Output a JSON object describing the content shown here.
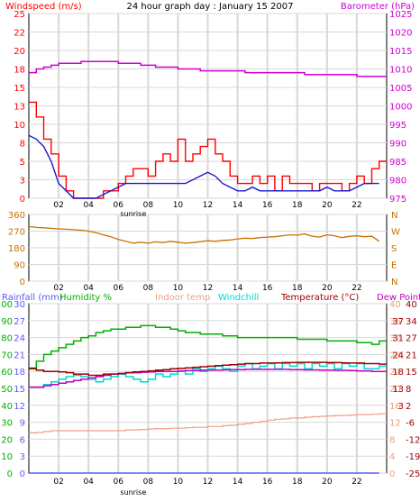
{
  "title": "24 hour graph day : January 15 2007",
  "colors": {
    "wind_speed": "#ff0000",
    "wind_gust": "#1a1ad0",
    "barometer": "#d000d0",
    "direction": "#c87000",
    "rainfall": "#5a5aff",
    "humidity": "#00b000",
    "indoor_temp": "#f0a080",
    "windchill": "#00d8d8",
    "temperature": "#a00000",
    "dew_point": "#c000c0",
    "grid": "#d8d8d8",
    "frame": "#000000"
  },
  "x_ticks": [
    "02",
    "04",
    "06",
    "08",
    "10",
    "12",
    "14",
    "16",
    "18",
    "20",
    "22"
  ],
  "sunrise_label": "sunrise",
  "chart_data": [
    {
      "type": "line",
      "panel": "wind-barometer",
      "left_axis_label": "Windspeed (m/s)",
      "right_axis_label": "Barometer (hPa)",
      "left_ticks": [
        "25",
        "22",
        "20",
        "18",
        "15",
        "13",
        "10",
        "8",
        "5",
        "3",
        "0"
      ],
      "right_ticks": [
        "1025",
        "1020",
        "1015",
        "1010",
        "1005",
        "1000",
        "995",
        "990",
        "985",
        "980",
        "975"
      ],
      "ylim_left": [
        0,
        25
      ],
      "ylim_right": [
        975,
        1025
      ],
      "x": [
        0,
        0.5,
        1,
        1.5,
        2,
        2.5,
        3,
        3.5,
        4,
        4.5,
        5,
        5.5,
        6,
        6.5,
        7,
        7.5,
        8,
        8.5,
        9,
        9.5,
        10,
        10.5,
        11,
        11.5,
        12,
        12.5,
        13,
        13.5,
        14,
        14.5,
        15,
        15.5,
        16,
        16.5,
        17,
        17.5,
        18,
        18.5,
        19,
        19.5,
        20,
        20.5,
        21,
        21.5,
        22,
        22.5,
        23,
        23.5
      ],
      "series": [
        {
          "key": "wind_speed",
          "values": [
            13,
            11,
            8,
            6,
            3,
            1,
            0,
            0,
            0,
            0,
            1,
            1,
            2,
            3,
            4,
            4,
            3,
            5,
            6,
            5,
            8,
            5,
            6,
            7,
            8,
            6,
            5,
            3,
            2,
            2,
            3,
            2,
            3,
            1,
            3,
            2,
            2,
            2,
            1,
            2,
            2,
            2,
            1,
            2,
            3,
            2,
            4,
            5
          ]
        },
        {
          "key": "wind_gust",
          "values": [
            8.5,
            8,
            7,
            5,
            2,
            1,
            0,
            0,
            0,
            0,
            0.5,
            1,
            1.5,
            2,
            2,
            2,
            2,
            2,
            2,
            2,
            2,
            2,
            2.5,
            3,
            3.5,
            3,
            2,
            1.5,
            1,
            1,
            1.5,
            1,
            1,
            1,
            1,
            1,
            1,
            1,
            1,
            1,
            1.5,
            1,
            1,
            1,
            1.5,
            2,
            2,
            2
          ]
        },
        {
          "key": "barometer",
          "values": [
            1009,
            1010,
            1010.5,
            1011,
            1011.5,
            1011.5,
            1011.5,
            1012,
            1012,
            1012,
            1012,
            1012,
            1011.5,
            1011.5,
            1011.5,
            1011,
            1011,
            1010.5,
            1010.5,
            1010.5,
            1010,
            1010,
            1010,
            1009.5,
            1009.5,
            1009.5,
            1009.5,
            1009.5,
            1009.5,
            1009,
            1009,
            1009,
            1009,
            1009,
            1009,
            1009,
            1009,
            1008.5,
            1008.5,
            1008.5,
            1008.5,
            1008.5,
            1008.5,
            1008.5,
            1008,
            1008,
            1008,
            1008
          ]
        }
      ]
    },
    {
      "type": "line",
      "panel": "wind-direction",
      "left_ticks": [
        "360",
        "270",
        "180",
        "90",
        "0"
      ],
      "right_ticks": [
        "N",
        "W",
        "S",
        "E",
        "N"
      ],
      "ylim_left": [
        0,
        360
      ],
      "x": [
        0,
        0.5,
        1,
        1.5,
        2,
        2.5,
        3,
        3.5,
        4,
        4.5,
        5,
        5.5,
        6,
        6.5,
        7,
        7.5,
        8,
        8.5,
        9,
        9.5,
        10,
        10.5,
        11,
        11.5,
        12,
        12.5,
        13,
        13.5,
        14,
        14.5,
        15,
        15.5,
        16,
        16.5,
        17,
        17.5,
        18,
        18.5,
        19,
        19.5,
        20,
        20.5,
        21,
        21.5,
        22,
        22.5,
        23,
        23.5
      ],
      "series": [
        {
          "key": "direction",
          "values": [
            295,
            290,
            288,
            285,
            282,
            280,
            278,
            275,
            270,
            262,
            250,
            240,
            225,
            215,
            205,
            210,
            205,
            212,
            208,
            215,
            210,
            205,
            208,
            213,
            218,
            215,
            220,
            222,
            228,
            232,
            230,
            235,
            238,
            240,
            245,
            250,
            248,
            255,
            243,
            238,
            250,
            245,
            235,
            242,
            245,
            240,
            243,
            215
          ]
        }
      ]
    },
    {
      "type": "line",
      "panel": "temp-humidity",
      "left_axis_label": "Rainfall (mm)",
      "humidity_label": "Humidity %",
      "indoor_label": "Indoor temp",
      "windchill_label": "Windchill",
      "temperature_label": "Temperature (°C)",
      "dewpoint_label": "Dew Point",
      "rain_ticks": [
        "30",
        "27",
        "24",
        "21",
        "18",
        "15",
        "12",
        "9",
        "6",
        "3",
        "0"
      ],
      "humidity_ticks": [
        "100",
        "90",
        "80",
        "70",
        "60",
        "50",
        "40",
        "30",
        "20",
        "10",
        "0"
      ],
      "indoor_ticks": [
        "40",
        "36",
        "32",
        "28",
        "24",
        "20",
        "16",
        "12",
        "8",
        "4",
        "0"
      ],
      "temp_ticks": [
        "40",
        "34",
        "27",
        "21",
        "15",
        "8",
        "2",
        "-6",
        "-12",
        "-19",
        "-25"
      ],
      "temp_ticks_inner": [
        "37",
        "31",
        "24",
        "18",
        "13",
        "3"
      ],
      "ylim_humidity": [
        0,
        100
      ],
      "ylim_temp": [
        -25,
        40
      ],
      "ylim_indoor": [
        0,
        40
      ],
      "ylim_rain": [
        0,
        30
      ],
      "x": [
        0,
        0.5,
        1,
        1.5,
        2,
        2.5,
        3,
        3.5,
        4,
        4.5,
        5,
        5.5,
        6,
        6.5,
        7,
        7.5,
        8,
        8.5,
        9,
        9.5,
        10,
        10.5,
        11,
        11.5,
        12,
        12.5,
        13,
        13.5,
        14,
        14.5,
        15,
        15.5,
        16,
        16.5,
        17,
        17.5,
        18,
        18.5,
        19,
        19.5,
        20,
        20.5,
        21,
        21.5,
        22,
        22.5,
        23,
        23.5
      ],
      "series": [
        {
          "key": "humidity",
          "values": [
            62,
            66,
            70,
            72,
            74,
            76,
            78,
            80,
            81,
            83,
            84,
            85,
            85,
            86,
            86,
            87,
            87,
            86,
            86,
            85,
            84,
            83,
            83,
            82,
            82,
            82,
            81,
            81,
            80,
            80,
            80,
            80,
            80,
            80,
            80,
            80,
            79,
            79,
            79,
            79,
            78,
            78,
            78,
            78,
            77,
            77,
            76,
            78
          ]
        },
        {
          "key": "temperature",
          "values": [
            15,
            14.5,
            14,
            14,
            13.8,
            13.5,
            13,
            13,
            12.5,
            12.5,
            13,
            13,
            13.2,
            13.5,
            13.8,
            14,
            14.2,
            14.5,
            14.7,
            15,
            15.2,
            15.4,
            15.6,
            15.8,
            16,
            16.2,
            16.4,
            16.6,
            16.8,
            17,
            17,
            17.2,
            17.2,
            17.3,
            17.4,
            17.4,
            17.5,
            17.5,
            17.5,
            17.5,
            17.4,
            17.4,
            17.3,
            17.2,
            17.2,
            17,
            17,
            16.8
          ]
        },
        {
          "key": "dew_point",
          "values": [
            8,
            8,
            8.5,
            9,
            9.5,
            10,
            10.5,
            11,
            11.5,
            12,
            12.5,
            13,
            13.2,
            13.5,
            13.5,
            13.7,
            13.8,
            14,
            14,
            14,
            14.2,
            14.3,
            14.3,
            14.5,
            14.5,
            14.5,
            14.6,
            14.7,
            14.7,
            14.8,
            14.8,
            14.8,
            14.8,
            14.8,
            14.8,
            14.7,
            14.7,
            14.6,
            14.6,
            14.5,
            14.5,
            14.4,
            14.4,
            14.3,
            14.2,
            14.2,
            14,
            14
          ]
        },
        {
          "key": "windchill",
          "values": [
            8,
            8,
            9,
            10,
            11,
            12,
            12.5,
            12,
            11,
            10,
            11,
            12,
            13,
            12,
            11,
            10,
            11,
            13,
            12,
            13,
            14,
            13,
            15,
            14,
            15,
            16,
            15,
            14,
            16,
            17,
            15,
            16,
            17,
            15,
            17,
            16,
            17,
            15,
            17,
            16,
            17,
            15,
            17,
            16,
            17,
            15,
            15,
            16
          ]
        },
        {
          "key": "indoor_temp",
          "values": [
            9.5,
            9.6,
            9.8,
            10,
            10,
            10,
            10,
            10,
            10,
            10,
            10,
            10,
            10,
            10.2,
            10.2,
            10.3,
            10.4,
            10.5,
            10.5,
            10.6,
            10.6,
            10.7,
            10.8,
            10.8,
            11,
            11,
            11.2,
            11.3,
            11.5,
            11.7,
            12,
            12.2,
            12.5,
            12.7,
            12.8,
            13,
            13,
            13.2,
            13.3,
            13.4,
            13.5,
            13.6,
            13.6,
            13.7,
            13.8,
            13.8,
            13.9,
            14
          ]
        },
        {
          "key": "rainfall",
          "values": [
            0,
            0,
            0,
            0,
            0,
            0,
            0,
            0,
            0,
            0,
            0,
            0,
            0,
            0,
            0,
            0,
            0,
            0,
            0,
            0,
            0,
            0,
            0,
            0,
            0,
            0,
            0,
            0,
            0,
            0,
            0,
            0,
            0,
            0,
            0,
            0,
            0,
            0,
            0,
            0,
            0,
            0,
            0,
            0,
            0,
            0,
            0,
            0
          ]
        }
      ]
    }
  ]
}
